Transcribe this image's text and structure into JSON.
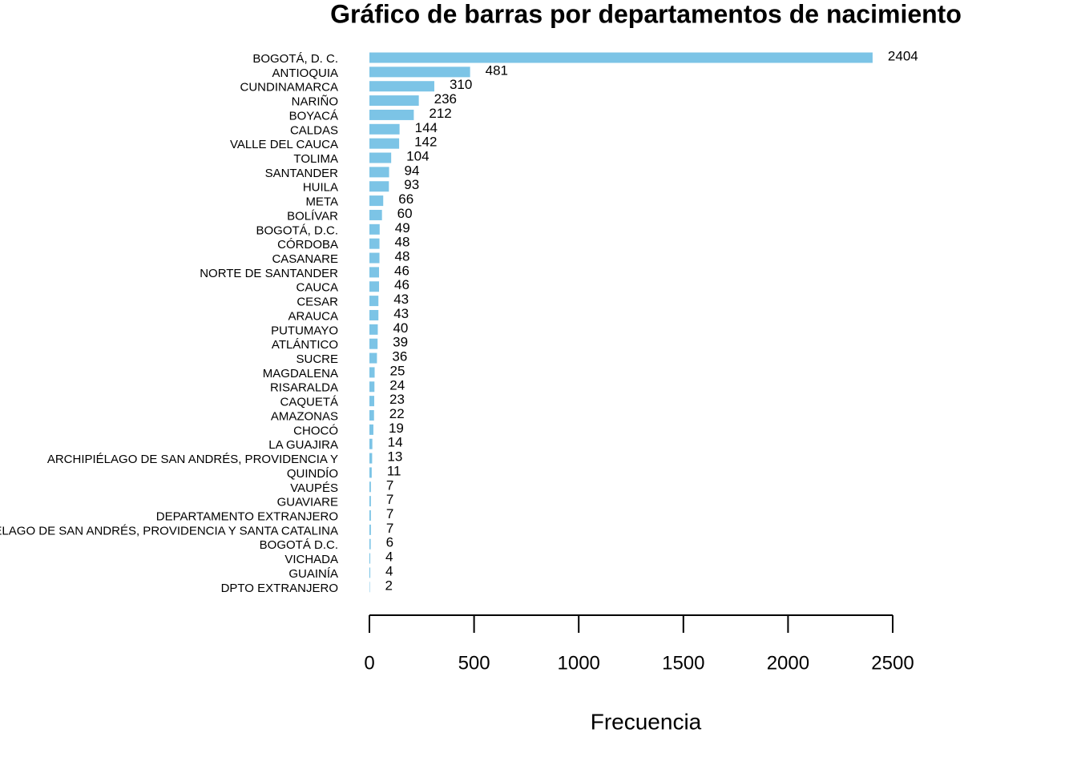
{
  "chart_data": {
    "type": "barh",
    "title": "Gráfico de barras por departamentos de nacimiento",
    "xlabel": "Frecuencia",
    "categories": [
      "BOGOTÁ, D. C.",
      "ANTIOQUIA",
      "CUNDINAMARCA",
      "NARIÑO",
      "BOYACÁ",
      "CALDAS",
      "VALLE DEL CAUCA",
      "TOLIMA",
      "SANTANDER",
      "HUILA",
      "META",
      "BOLÍVAR",
      "BOGOTÁ, D.C.",
      "CÓRDOBA",
      "CASANARE",
      "NORTE DE SANTANDER",
      "CAUCA",
      "CESAR",
      "ARAUCA",
      "PUTUMAYO",
      "ATLÁNTICO",
      "SUCRE",
      "MAGDALENA",
      "RISARALDA",
      "CAQUETÁ",
      "AMAZONAS",
      "CHOCÓ",
      "LA GUAJIRA",
      "ARCHIPIÉLAGO DE SAN ANDRÉS, PROVIDENCIA Y",
      "QUINDÍO",
      "VAUPÉS",
      "GUAVIARE",
      "DEPARTAMENTO EXTRANJERO",
      "ARCHIPIÉLAGO DE SAN ANDRÉS, PROVIDENCIA Y SANTA CATALINA",
      "BOGOTÁ D.C.",
      "VICHADA",
      "GUAINÍA",
      "DPTO EXTRANJERO"
    ],
    "values": [
      2404,
      481,
      310,
      236,
      212,
      144,
      142,
      104,
      94,
      93,
      66,
      60,
      49,
      48,
      48,
      46,
      46,
      43,
      43,
      40,
      39,
      36,
      25,
      24,
      23,
      22,
      19,
      14,
      13,
      11,
      7,
      7,
      7,
      7,
      6,
      4,
      4,
      2
    ],
    "color": "#7cc4e6",
    "xlim": [
      0,
      2500
    ],
    "xticks": [
      0,
      500,
      1000,
      1500,
      2000,
      2500
    ]
  }
}
